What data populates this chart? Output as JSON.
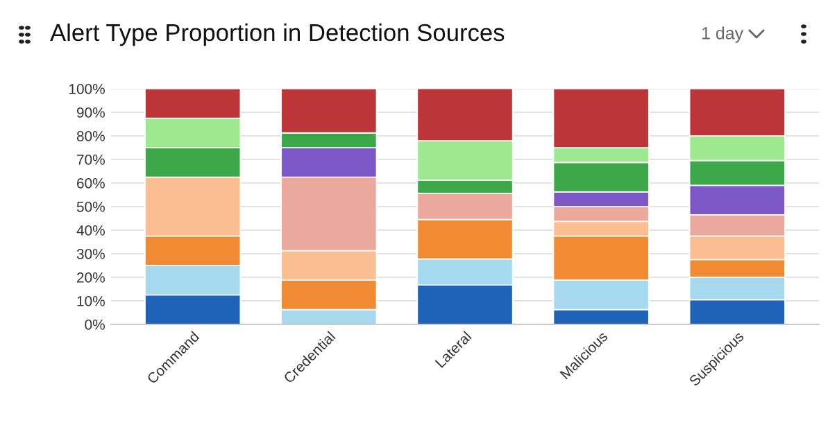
{
  "chart_data": {
    "type": "bar",
    "title": "Alert Type Proportion in Detection Sources",
    "annotations": [
      "1 day"
    ],
    "categories": [
      "Command",
      "Credential",
      "Lateral",
      "Malicious",
      "Suspicious"
    ],
    "stacked": true,
    "series": [
      {
        "color": "#1f63b8",
        "values": [
          12.5,
          0,
          16.7,
          6.3,
          10.5
        ]
      },
      {
        "color": "#a6d8ee",
        "values": [
          12.5,
          6.3,
          11.1,
          12.5,
          9.5
        ]
      },
      {
        "color": "#f08a33",
        "values": [
          12.5,
          12.5,
          16.7,
          18.7,
          7.5
        ]
      },
      {
        "color": "#fbbd92",
        "values": [
          25,
          12.5,
          0,
          6.2,
          10
        ]
      },
      {
        "color": "#eba89c",
        "values": [
          0,
          31.2,
          11.1,
          6.3,
          9
        ]
      },
      {
        "color": "#7b58c6",
        "values": [
          0,
          12.5,
          0,
          6.2,
          12.5
        ]
      },
      {
        "color": "#3ca84a",
        "values": [
          12.5,
          6.3,
          5.6,
          12.5,
          10.5
        ]
      },
      {
        "color": "#9ee88f",
        "values": [
          12.5,
          0,
          16.7,
          6.3,
          10.5
        ]
      },
      {
        "color": "#bc3538",
        "values": [
          12.5,
          18.7,
          22.2,
          25,
          20
        ]
      }
    ],
    "ylim": [
      0,
      100
    ],
    "yticks": [
      {
        "value": 0,
        "label": "0%"
      },
      {
        "value": 10,
        "label": "10%"
      },
      {
        "value": 20,
        "label": "20%"
      },
      {
        "value": 30,
        "label": "30%"
      },
      {
        "value": 40,
        "label": "40%"
      },
      {
        "value": 50,
        "label": "50%"
      },
      {
        "value": 60,
        "label": "60%"
      },
      {
        "value": 70,
        "label": "70%"
      },
      {
        "value": 80,
        "label": "80%"
      },
      {
        "value": 90,
        "label": "90%"
      },
      {
        "value": 100,
        "label": "100%"
      }
    ],
    "grid": "y"
  }
}
